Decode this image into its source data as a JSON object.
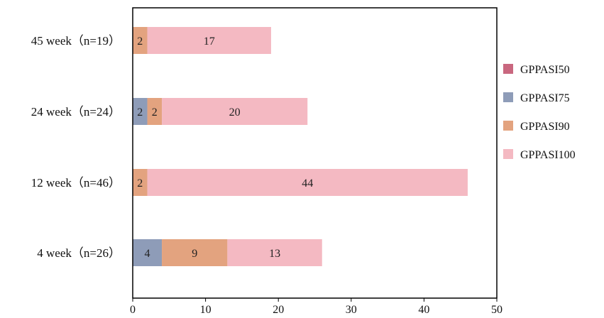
{
  "chart_data": {
    "type": "bar",
    "orientation": "horizontal",
    "stacked": true,
    "categories": [
      "45 week（n=19）",
      "24 week（n=24）",
      "12 week（n=46）",
      "4 week（n=26）"
    ],
    "series": [
      {
        "name": "GPPASI50",
        "color": "#c9677f",
        "values": [
          0,
          0,
          0,
          0
        ]
      },
      {
        "name": "GPPASI75",
        "color": "#8e9cb8",
        "values": [
          0,
          2,
          0,
          4
        ]
      },
      {
        "name": "GPPASI90",
        "color": "#e3a37f",
        "values": [
          2,
          2,
          2,
          9
        ]
      },
      {
        "name": "GPPASI100",
        "color": "#f4b9c2",
        "values": [
          17,
          20,
          44,
          13
        ]
      }
    ],
    "xlim": [
      0,
      50
    ],
    "xticks": [
      0,
      10,
      20,
      30,
      40,
      50
    ],
    "grid": false,
    "legend_position": "right"
  }
}
